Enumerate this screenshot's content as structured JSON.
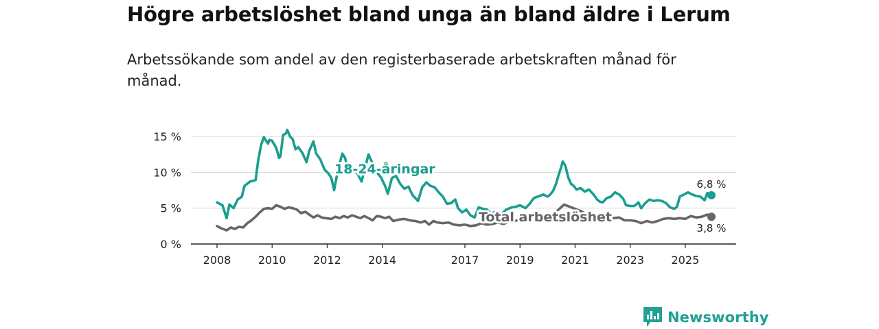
{
  "title": "Högre arbetslöshet bland unga än bland äldre i Lerum",
  "subtitle": "Arbetssökande som andel av den registerbaserade arbetskraften månad för månad.",
  "brand": {
    "name": "Newsworthy",
    "icon": "newsworthy-logo-icon",
    "color": "#22a195"
  },
  "chart_data": {
    "type": "line",
    "title": "Högre arbetslöshet bland unga än bland äldre i Lerum",
    "subtitle": "Arbetssökande som andel av den registerbaserade arbetskraften månad för månad.",
    "xlabel": "",
    "ylabel": "",
    "xlim": [
      2007.9,
      2026.4
    ],
    "ylim": [
      0,
      15
    ],
    "y_ticks": [
      0,
      5,
      10,
      15
    ],
    "y_tick_labels": [
      "0 %",
      "5 %",
      "10 %",
      "15 %"
    ],
    "x_ticks": [
      2008,
      2010,
      2012,
      2014,
      2017,
      2019,
      2021,
      2023,
      2025
    ],
    "x_tick_labels": [
      "2008",
      "2010",
      "2012",
      "2014",
      "2017",
      "2019",
      "2021",
      "2023",
      "2025"
    ],
    "grid": true,
    "series": [
      {
        "name": "18-24-åringar",
        "color": "#1a9e8f",
        "end_label": "6,8 %",
        "points": [
          [
            2008.0,
            5.8
          ],
          [
            2008.2,
            5.4
          ],
          [
            2008.35,
            3.6
          ],
          [
            2008.45,
            5.5
          ],
          [
            2008.6,
            5.0
          ],
          [
            2008.75,
            6.2
          ],
          [
            2008.9,
            6.6
          ],
          [
            2009.0,
            8.1
          ],
          [
            2009.2,
            8.7
          ],
          [
            2009.4,
            8.9
          ],
          [
            2009.5,
            11.8
          ],
          [
            2009.6,
            13.8
          ],
          [
            2009.7,
            14.9
          ],
          [
            2009.85,
            14.0
          ],
          [
            2009.9,
            14.5
          ],
          [
            2010.0,
            14.4
          ],
          [
            2010.15,
            13.4
          ],
          [
            2010.25,
            12.0
          ],
          [
            2010.3,
            12.2
          ],
          [
            2010.4,
            15.2
          ],
          [
            2010.5,
            15.4
          ],
          [
            2010.55,
            15.9
          ],
          [
            2010.65,
            15.0
          ],
          [
            2010.75,
            14.6
          ],
          [
            2010.85,
            13.2
          ],
          [
            2010.95,
            13.5
          ],
          [
            2011.1,
            12.7
          ],
          [
            2011.25,
            11.4
          ],
          [
            2011.35,
            13.0
          ],
          [
            2011.5,
            14.3
          ],
          [
            2011.6,
            12.6
          ],
          [
            2011.75,
            11.8
          ],
          [
            2011.9,
            10.4
          ],
          [
            2012.05,
            9.8
          ],
          [
            2012.15,
            9.2
          ],
          [
            2012.25,
            7.5
          ],
          [
            2012.35,
            9.5
          ],
          [
            2012.45,
            11.2
          ],
          [
            2012.55,
            12.6
          ],
          [
            2012.65,
            12.0
          ],
          [
            2012.75,
            10.5
          ],
          [
            2012.85,
            11.0
          ],
          [
            2012.95,
            10.4
          ],
          [
            2013.1,
            9.8
          ],
          [
            2013.25,
            8.7
          ],
          [
            2013.4,
            11.0
          ],
          [
            2013.5,
            12.5
          ],
          [
            2013.65,
            11.2
          ],
          [
            2013.8,
            10.0
          ],
          [
            2013.95,
            9.3
          ],
          [
            2014.1,
            8.1
          ],
          [
            2014.2,
            7.0
          ],
          [
            2014.35,
            9.2
          ],
          [
            2014.5,
            9.5
          ],
          [
            2014.65,
            8.4
          ],
          [
            2014.8,
            7.7
          ],
          [
            2014.95,
            8.0
          ],
          [
            2015.1,
            6.8
          ],
          [
            2015.3,
            6.0
          ],
          [
            2015.45,
            7.9
          ],
          [
            2015.6,
            8.6
          ],
          [
            2015.75,
            8.1
          ],
          [
            2015.9,
            7.9
          ],
          [
            2016.05,
            7.2
          ],
          [
            2016.2,
            6.6
          ],
          [
            2016.35,
            5.6
          ],
          [
            2016.5,
            5.7
          ],
          [
            2016.65,
            6.2
          ],
          [
            2016.75,
            5.0
          ],
          [
            2016.9,
            4.4
          ],
          [
            2017.05,
            4.8
          ],
          [
            2017.2,
            4.0
          ],
          [
            2017.35,
            3.7
          ],
          [
            2017.5,
            5.1
          ],
          [
            2017.65,
            4.9
          ],
          [
            2017.8,
            4.8
          ],
          [
            2017.95,
            4.2
          ],
          [
            2018.1,
            4.5
          ],
          [
            2018.3,
            4.1
          ],
          [
            2018.5,
            4.8
          ],
          [
            2018.7,
            5.1
          ],
          [
            2018.85,
            5.2
          ],
          [
            2019.0,
            5.4
          ],
          [
            2019.2,
            5.0
          ],
          [
            2019.35,
            5.6
          ],
          [
            2019.5,
            6.4
          ],
          [
            2019.7,
            6.7
          ],
          [
            2019.85,
            6.9
          ],
          [
            2020.0,
            6.6
          ],
          [
            2020.1,
            6.9
          ],
          [
            2020.2,
            7.4
          ],
          [
            2020.3,
            8.3
          ],
          [
            2020.4,
            9.6
          ],
          [
            2020.5,
            10.8
          ],
          [
            2020.55,
            11.5
          ],
          [
            2020.65,
            10.9
          ],
          [
            2020.75,
            9.3
          ],
          [
            2020.85,
            8.4
          ],
          [
            2020.95,
            8.1
          ],
          [
            2021.05,
            7.6
          ],
          [
            2021.2,
            7.8
          ],
          [
            2021.35,
            7.3
          ],
          [
            2021.5,
            7.6
          ],
          [
            2021.65,
            7.0
          ],
          [
            2021.8,
            6.2
          ],
          [
            2021.9,
            5.9
          ],
          [
            2022.0,
            5.8
          ],
          [
            2022.15,
            6.4
          ],
          [
            2022.3,
            6.6
          ],
          [
            2022.45,
            7.2
          ],
          [
            2022.6,
            6.9
          ],
          [
            2022.75,
            6.3
          ],
          [
            2022.85,
            5.4
          ],
          [
            2023.0,
            5.3
          ],
          [
            2023.15,
            5.3
          ],
          [
            2023.3,
            5.8
          ],
          [
            2023.4,
            5.0
          ],
          [
            2023.55,
            5.7
          ],
          [
            2023.7,
            6.2
          ],
          [
            2023.85,
            6.0
          ],
          [
            2024.0,
            6.1
          ],
          [
            2024.15,
            6.0
          ],
          [
            2024.3,
            5.7
          ],
          [
            2024.45,
            5.1
          ],
          [
            2024.6,
            4.9
          ],
          [
            2024.7,
            5.2
          ],
          [
            2024.8,
            6.6
          ],
          [
            2024.95,
            6.9
          ],
          [
            2025.1,
            7.2
          ],
          [
            2025.25,
            6.9
          ],
          [
            2025.4,
            6.7
          ],
          [
            2025.55,
            6.6
          ],
          [
            2025.7,
            6.1
          ],
          [
            2025.8,
            7.1
          ],
          [
            2025.95,
            6.8
          ]
        ]
      },
      {
        "name": "Total arbetslöshet",
        "color": "#666666",
        "end_label": "3,8 %",
        "points": [
          [
            2008.0,
            2.5
          ],
          [
            2008.15,
            2.2
          ],
          [
            2008.35,
            1.9
          ],
          [
            2008.5,
            2.3
          ],
          [
            2008.65,
            2.1
          ],
          [
            2008.8,
            2.4
          ],
          [
            2008.95,
            2.3
          ],
          [
            2009.1,
            2.9
          ],
          [
            2009.25,
            3.3
          ],
          [
            2009.4,
            3.8
          ],
          [
            2009.55,
            4.4
          ],
          [
            2009.7,
            4.9
          ],
          [
            2009.85,
            5.0
          ],
          [
            2010.0,
            4.9
          ],
          [
            2010.15,
            5.4
          ],
          [
            2010.3,
            5.2
          ],
          [
            2010.45,
            4.9
          ],
          [
            2010.6,
            5.1
          ],
          [
            2010.75,
            5.0
          ],
          [
            2010.9,
            4.8
          ],
          [
            2011.05,
            4.3
          ],
          [
            2011.2,
            4.5
          ],
          [
            2011.35,
            4.1
          ],
          [
            2011.5,
            3.7
          ],
          [
            2011.65,
            4.0
          ],
          [
            2011.8,
            3.7
          ],
          [
            2011.95,
            3.6
          ],
          [
            2012.15,
            3.5
          ],
          [
            2012.3,
            3.8
          ],
          [
            2012.45,
            3.6
          ],
          [
            2012.6,
            3.9
          ],
          [
            2012.75,
            3.7
          ],
          [
            2012.9,
            4.0
          ],
          [
            2013.05,
            3.8
          ],
          [
            2013.2,
            3.6
          ],
          [
            2013.35,
            3.9
          ],
          [
            2013.5,
            3.6
          ],
          [
            2013.65,
            3.3
          ],
          [
            2013.8,
            3.9
          ],
          [
            2013.95,
            3.8
          ],
          [
            2014.1,
            3.6
          ],
          [
            2014.25,
            3.8
          ],
          [
            2014.4,
            3.2
          ],
          [
            2014.6,
            3.4
          ],
          [
            2014.8,
            3.5
          ],
          [
            2015.0,
            3.3
          ],
          [
            2015.2,
            3.2
          ],
          [
            2015.4,
            3.0
          ],
          [
            2015.55,
            3.2
          ],
          [
            2015.7,
            2.7
          ],
          [
            2015.85,
            3.2
          ],
          [
            2016.0,
            3.0
          ],
          [
            2016.2,
            2.9
          ],
          [
            2016.4,
            3.0
          ],
          [
            2016.6,
            2.7
          ],
          [
            2016.8,
            2.6
          ],
          [
            2017.0,
            2.7
          ],
          [
            2017.2,
            2.5
          ],
          [
            2017.4,
            2.6
          ],
          [
            2017.6,
            2.9
          ],
          [
            2017.8,
            2.7
          ],
          [
            2018.0,
            2.8
          ],
          [
            2018.2,
            3.0
          ],
          [
            2018.4,
            2.8
          ],
          [
            2018.6,
            3.1
          ],
          [
            2018.8,
            3.2
          ],
          [
            2019.0,
            3.4
          ],
          [
            2019.2,
            3.5
          ],
          [
            2019.4,
            3.3
          ],
          [
            2019.6,
            3.6
          ],
          [
            2019.8,
            3.5
          ],
          [
            2020.0,
            3.9
          ],
          [
            2020.2,
            4.2
          ],
          [
            2020.4,
            4.8
          ],
          [
            2020.6,
            5.5
          ],
          [
            2020.8,
            5.2
          ],
          [
            2021.0,
            4.9
          ],
          [
            2021.2,
            4.6
          ],
          [
            2021.4,
            4.2
          ],
          [
            2021.6,
            3.9
          ],
          [
            2021.8,
            3.6
          ],
          [
            2022.0,
            3.4
          ],
          [
            2022.2,
            3.3
          ],
          [
            2022.4,
            3.6
          ],
          [
            2022.6,
            3.7
          ],
          [
            2022.8,
            3.3
          ],
          [
            2023.0,
            3.3
          ],
          [
            2023.2,
            3.2
          ],
          [
            2023.4,
            2.9
          ],
          [
            2023.6,
            3.2
          ],
          [
            2023.8,
            3.0
          ],
          [
            2024.0,
            3.2
          ],
          [
            2024.2,
            3.5
          ],
          [
            2024.4,
            3.6
          ],
          [
            2024.6,
            3.5
          ],
          [
            2024.8,
            3.6
          ],
          [
            2025.0,
            3.5
          ],
          [
            2025.2,
            3.9
          ],
          [
            2025.4,
            3.7
          ],
          [
            2025.6,
            3.8
          ],
          [
            2025.8,
            4.1
          ],
          [
            2025.95,
            3.8
          ]
        ]
      }
    ]
  }
}
